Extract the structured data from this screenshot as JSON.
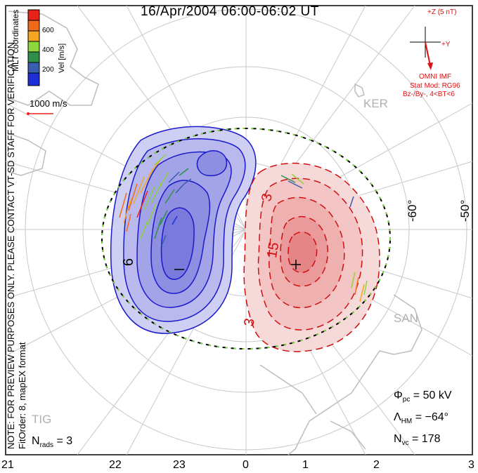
{
  "title": "16/Apr/2004 06:00-06:02 UT",
  "mlt_labels": [
    "21",
    "22",
    "23",
    "0",
    "1",
    "2",
    "3"
  ],
  "lat_labels": [
    "-60°",
    "-50°"
  ],
  "colorbar": {
    "title": "MLT coordinates",
    "unit": "Vel [m/s]",
    "ticks": [
      "600",
      "400",
      "200"
    ],
    "colors": [
      "#e8231a",
      "#f06a1c",
      "#f5a623",
      "#8bd63a",
      "#2f8f4a",
      "#3a5fb0",
      "#1f2fd8"
    ]
  },
  "ref_vector": "1000 m/s",
  "note": "NOTE: FOR PREVIEW PURPOSES ONLY. PLEASE CONTACT VT-SD STAFF FOR VERIFICATION.",
  "fit_order": "FitOrder: 8, mapEX format",
  "imf": {
    "z_label": "+Z (5 nT)",
    "y_label": "+Y",
    "source": "OMNI IMF",
    "model": "Stat Mod: RG96",
    "condition": "Bz-/By-, 4<BT<6"
  },
  "sites": [
    "KER",
    "SAN",
    "TIG"
  ],
  "contour_labels": {
    "neg_outer": "6",
    "neg_center": "−",
    "pos_a": "3",
    "pos_b": "15",
    "pos_c": "3",
    "pos_center": "+"
  },
  "stats": {
    "phi_label": "Φ",
    "phi_sub": "pc",
    "phi_value": "= 50 kV",
    "lambda_label": "Λ",
    "lambda_sub": "HM",
    "lambda_value": "= −64°",
    "nvc_label": "N",
    "nvc_sub": "vc",
    "nvc_value": "= 178",
    "nrads_label": "N",
    "nrads_sub": "rads",
    "nrads_value": "= 3"
  },
  "colors": {
    "negative_cell": "#2222cc",
    "positive_cell": "#cc1111",
    "grid": "#c8c8c8",
    "coast": "#bdbdbd"
  }
}
